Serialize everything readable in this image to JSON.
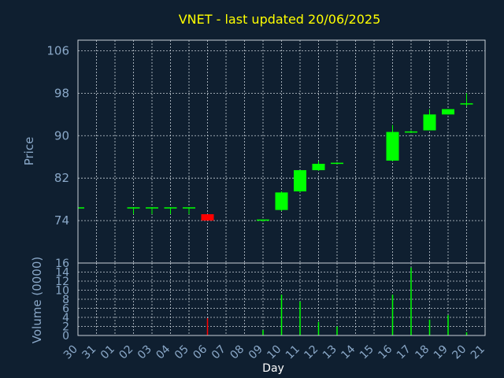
{
  "chart_data": [
    {
      "type": "candlestick",
      "title": "VNET - last updated 20/06/2025",
      "ylabel": "Price",
      "ylim": [
        66,
        108
      ],
      "yticks": [
        74,
        82,
        90,
        98,
        106
      ],
      "x": [
        "30",
        "31",
        "01",
        "02",
        "03",
        "04",
        "05",
        "06",
        "07",
        "08",
        "09",
        "10",
        "11",
        "12",
        "13",
        "14",
        "15",
        "16",
        "17",
        "18",
        "19",
        "20",
        "21"
      ],
      "candles": [
        {
          "day": "30",
          "open": 76.5,
          "high": 76.5,
          "low": 76.5,
          "close": 76.5
        },
        {
          "day": "02",
          "open": 76.5,
          "high": 76.5,
          "low": 75.2,
          "close": 76.5
        },
        {
          "day": "03",
          "open": 76.5,
          "high": 76.5,
          "low": 75.2,
          "close": 76.5
        },
        {
          "day": "04",
          "open": 76.5,
          "high": 76.5,
          "low": 75.2,
          "close": 76.5
        },
        {
          "day": "05",
          "open": 76.5,
          "high": 76.5,
          "low": 75.2,
          "close": 76.5
        },
        {
          "day": "06",
          "open": 75.2,
          "high": 75.2,
          "low": 74.0,
          "close": 74.0
        },
        {
          "day": "09",
          "open": 74.0,
          "high": 74.2,
          "low": 73.8,
          "close": 74.2
        },
        {
          "day": "10",
          "open": 76.0,
          "high": 79.5,
          "low": 75.8,
          "close": 79.3
        },
        {
          "day": "11",
          "open": 79.5,
          "high": 83.5,
          "low": 79.3,
          "close": 83.5
        },
        {
          "day": "12",
          "open": 83.5,
          "high": 85.2,
          "low": 83.4,
          "close": 84.7
        },
        {
          "day": "13",
          "open": 84.8,
          "high": 85.0,
          "low": 84.6,
          "close": 84.9
        },
        {
          "day": "16",
          "open": 85.3,
          "high": 92.0,
          "low": 85.2,
          "close": 90.7
        },
        {
          "day": "17",
          "open": 90.6,
          "high": 91.0,
          "low": 90.5,
          "close": 90.8
        },
        {
          "day": "18",
          "open": 91.0,
          "high": 95.0,
          "low": 91.0,
          "close": 94.0
        },
        {
          "day": "19",
          "open": 94.0,
          "high": 95.0,
          "low": 94.0,
          "close": 95.0
        },
        {
          "day": "20",
          "open": 96.0,
          "high": 98.0,
          "low": 95.5,
          "close": 96.1
        }
      ],
      "colors": {
        "up": "#00ff00",
        "down": "#ff0000"
      },
      "grid": true
    },
    {
      "type": "bar",
      "ylabel": "Volume (0000)",
      "xlabel": "Day",
      "ylim": [
        0,
        16
      ],
      "yticks": [
        0,
        2,
        4,
        6,
        8,
        10,
        12,
        14,
        16
      ],
      "categories": [
        "30",
        "31",
        "01",
        "02",
        "03",
        "04",
        "05",
        "06",
        "07",
        "08",
        "09",
        "10",
        "11",
        "12",
        "13",
        "14",
        "15",
        "16",
        "17",
        "18",
        "19",
        "20",
        "21"
      ],
      "bars": [
        {
          "day": "06",
          "value": 3.8,
          "color": "#ff0000"
        },
        {
          "day": "09",
          "value": 1.2,
          "color": "#00ff00"
        },
        {
          "day": "10",
          "value": 9.0,
          "color": "#00ff00"
        },
        {
          "day": "11",
          "value": 7.5,
          "color": "#00ff00"
        },
        {
          "day": "12",
          "value": 3.0,
          "color": "#00ff00"
        },
        {
          "day": "13",
          "value": 2.0,
          "color": "#00ff00"
        },
        {
          "day": "16",
          "value": 9.0,
          "color": "#00ff00"
        },
        {
          "day": "17",
          "value": 15.0,
          "color": "#00ff00"
        },
        {
          "day": "18",
          "value": 3.5,
          "color": "#00ff00"
        },
        {
          "day": "19",
          "value": 4.5,
          "color": "#00ff00"
        },
        {
          "day": "20",
          "value": 0.7,
          "color": "#00ff00"
        }
      ],
      "grid": true
    }
  ]
}
